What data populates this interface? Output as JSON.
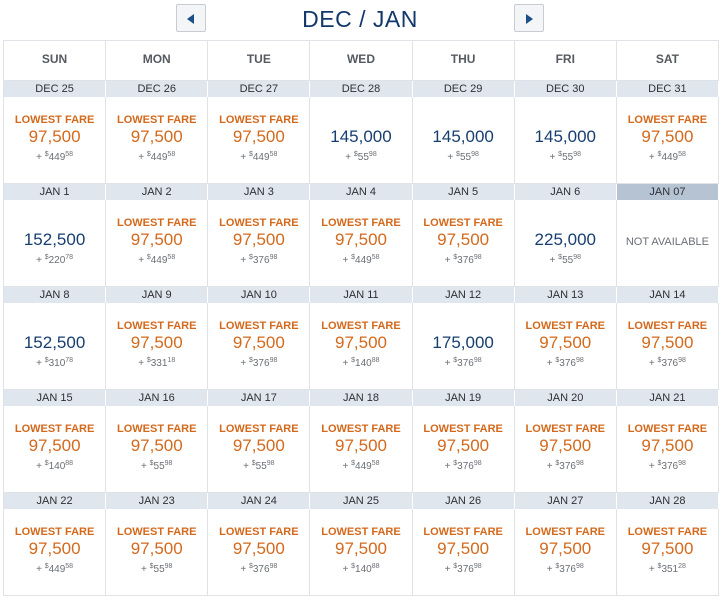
{
  "header": {
    "title": "DEC / JAN"
  },
  "weekdays": [
    "SUN",
    "MON",
    "TUE",
    "WED",
    "THU",
    "FRI",
    "SAT"
  ],
  "lowest_label": "LOWEST FARE",
  "not_available_label": "NOT AVAILABLE",
  "colors": {
    "lowest": "#d4691c",
    "regular": "#173e70",
    "date_bar": "#dfe6ee",
    "date_bar_unavailable": "#b6c3d2"
  },
  "weeks": [
    [
      {
        "date": "DEC 25",
        "lowest": true,
        "miles": "97,500",
        "tax_dollars": "449",
        "tax_cents": "58"
      },
      {
        "date": "DEC 26",
        "lowest": true,
        "miles": "97,500",
        "tax_dollars": "449",
        "tax_cents": "58"
      },
      {
        "date": "DEC 27",
        "lowest": true,
        "miles": "97,500",
        "tax_dollars": "449",
        "tax_cents": "58"
      },
      {
        "date": "DEC 28",
        "lowest": false,
        "miles": "145,000",
        "tax_dollars": "55",
        "tax_cents": "98"
      },
      {
        "date": "DEC 29",
        "lowest": false,
        "miles": "145,000",
        "tax_dollars": "55",
        "tax_cents": "98"
      },
      {
        "date": "DEC 30",
        "lowest": false,
        "miles": "145,000",
        "tax_dollars": "55",
        "tax_cents": "98"
      },
      {
        "date": "DEC 31",
        "lowest": true,
        "miles": "97,500",
        "tax_dollars": "449",
        "tax_cents": "58"
      }
    ],
    [
      {
        "date": "JAN 1",
        "lowest": false,
        "miles": "152,500",
        "tax_dollars": "220",
        "tax_cents": "78"
      },
      {
        "date": "JAN 2",
        "lowest": true,
        "miles": "97,500",
        "tax_dollars": "449",
        "tax_cents": "58"
      },
      {
        "date": "JAN 3",
        "lowest": true,
        "miles": "97,500",
        "tax_dollars": "376",
        "tax_cents": "98"
      },
      {
        "date": "JAN 4",
        "lowest": true,
        "miles": "97,500",
        "tax_dollars": "449",
        "tax_cents": "58"
      },
      {
        "date": "JAN 5",
        "lowest": true,
        "miles": "97,500",
        "tax_dollars": "376",
        "tax_cents": "98"
      },
      {
        "date": "JAN 6",
        "lowest": false,
        "miles": "225,000",
        "tax_dollars": "55",
        "tax_cents": "98"
      },
      {
        "date": "JAN 07",
        "unavailable": true
      }
    ],
    [
      {
        "date": "JAN 8",
        "lowest": false,
        "miles": "152,500",
        "tax_dollars": "310",
        "tax_cents": "78"
      },
      {
        "date": "JAN 9",
        "lowest": true,
        "miles": "97,500",
        "tax_dollars": "331",
        "tax_cents": "18"
      },
      {
        "date": "JAN 10",
        "lowest": true,
        "miles": "97,500",
        "tax_dollars": "376",
        "tax_cents": "98"
      },
      {
        "date": "JAN 11",
        "lowest": true,
        "miles": "97,500",
        "tax_dollars": "140",
        "tax_cents": "88"
      },
      {
        "date": "JAN 12",
        "lowest": false,
        "miles": "175,000",
        "tax_dollars": "376",
        "tax_cents": "98"
      },
      {
        "date": "JAN 13",
        "lowest": true,
        "miles": "97,500",
        "tax_dollars": "376",
        "tax_cents": "98"
      },
      {
        "date": "JAN 14",
        "lowest": true,
        "miles": "97,500",
        "tax_dollars": "376",
        "tax_cents": "98"
      }
    ],
    [
      {
        "date": "JAN 15",
        "lowest": true,
        "miles": "97,500",
        "tax_dollars": "140",
        "tax_cents": "88"
      },
      {
        "date": "JAN 16",
        "lowest": true,
        "miles": "97,500",
        "tax_dollars": "55",
        "tax_cents": "98"
      },
      {
        "date": "JAN 17",
        "lowest": true,
        "miles": "97,500",
        "tax_dollars": "55",
        "tax_cents": "98"
      },
      {
        "date": "JAN 18",
        "lowest": true,
        "miles": "97,500",
        "tax_dollars": "449",
        "tax_cents": "58"
      },
      {
        "date": "JAN 19",
        "lowest": true,
        "miles": "97,500",
        "tax_dollars": "376",
        "tax_cents": "98"
      },
      {
        "date": "JAN 20",
        "lowest": true,
        "miles": "97,500",
        "tax_dollars": "376",
        "tax_cents": "98"
      },
      {
        "date": "JAN 21",
        "lowest": true,
        "miles": "97,500",
        "tax_dollars": "376",
        "tax_cents": "98"
      }
    ],
    [
      {
        "date": "JAN 22",
        "lowest": true,
        "miles": "97,500",
        "tax_dollars": "449",
        "tax_cents": "58"
      },
      {
        "date": "JAN 23",
        "lowest": true,
        "miles": "97,500",
        "tax_dollars": "55",
        "tax_cents": "98"
      },
      {
        "date": "JAN 24",
        "lowest": true,
        "miles": "97,500",
        "tax_dollars": "376",
        "tax_cents": "98"
      },
      {
        "date": "JAN 25",
        "lowest": true,
        "miles": "97,500",
        "tax_dollars": "140",
        "tax_cents": "88"
      },
      {
        "date": "JAN 26",
        "lowest": true,
        "miles": "97,500",
        "tax_dollars": "376",
        "tax_cents": "98"
      },
      {
        "date": "JAN 27",
        "lowest": true,
        "miles": "97,500",
        "tax_dollars": "376",
        "tax_cents": "98"
      },
      {
        "date": "JAN 28",
        "lowest": true,
        "miles": "97,500",
        "tax_dollars": "351",
        "tax_cents": "28"
      }
    ]
  ]
}
